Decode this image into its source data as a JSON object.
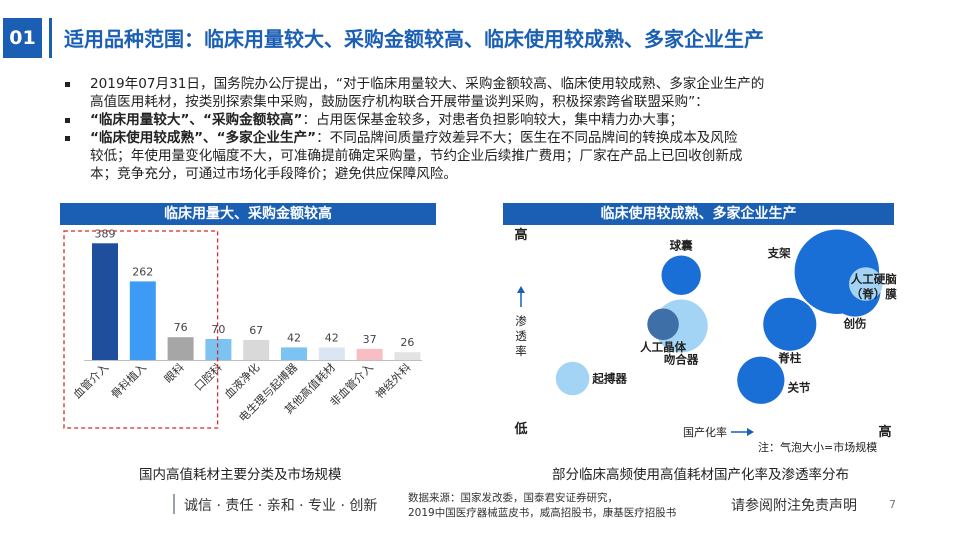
{
  "header": {
    "number": "01",
    "title": "适用品种范围：临床用量较大、采购金额较高、临床使用较成熟、多家企业生产"
  },
  "bullets": {
    "b1_line1": "2019年07月31日，国务院办公厅提出，“对于临床用量较大、采购金额较高、临床使用较成熟、多家企业生产的",
    "b1_line2": "高值医用耗材，按类别探索集中采购，鼓励医疗机构联合开展带量谈判采购，积极探索跨省联盟采购”：",
    "b2_bold": "“临床用量较大”、“采购金额较高”",
    "b2_text": "：占用医保基金较多，对患者负担影响较大，集中精力办大事；",
    "b3_bold": "“临床使用较成熟”、“多家企业生产”",
    "b3_text": "：不同品牌间质量疗效差异不大；医生在不同品牌间的转换成本及风险",
    "b3_line2": "较低；年使用量变化幅度不大，可准确提前确定采购量，节约企业后续推广费用；厂家在产品上已回收创新成",
    "b3_line3": "本；竞争充分，可通过市场化手段降价；避免供应保障风险。"
  },
  "left_panel": {
    "header": "临床用量大、采购金额较高",
    "caption": "国内高值耗材主要分类及市场规模"
  },
  "right_panel": {
    "header": "临床使用较成熟、多家企业生产",
    "caption": "部分临床高频使用高值耗材国产化率及渗透率分布",
    "y_high": "高",
    "y_low": "低",
    "y_label": "渗透率",
    "x_label": "国产化率",
    "x_high": "高",
    "note": "注：气泡大小=市场规模"
  },
  "footer": {
    "motto": "诚信 · 责任 · 亲和 · 专业 · 创新",
    "source_line1": "数据来源：国家发改委，国泰君安证券研究，",
    "source_line2": "2019中国医疗器械蓝皮书，威高招股书，康基医疗招股书",
    "disclaimer": "请参阅附注免责声明",
    "page": "7"
  },
  "chart_data": [
    {
      "type": "bar",
      "title": "临床用量大、采购金额较高",
      "categories": [
        "血管介入",
        "骨科植入",
        "眼科",
        "口腔科",
        "血液净化",
        "电生理与起搏器",
        "其他高值耗材",
        "非血管介入",
        "神经外科"
      ],
      "values": [
        389,
        262,
        76,
        70,
        67,
        42,
        42,
        37,
        26
      ],
      "colors": [
        "#1f4e9c",
        "#3d9bf5",
        "#a6a6a6",
        "#7dc3f2",
        "#d9d9d9",
        "#7dc3f2",
        "#dbe6f2",
        "#f7bfc3",
        "#e3e3e3"
      ],
      "highlighted": [
        "血管介入",
        "骨科植入",
        "眼科"
      ],
      "ylim": [
        0,
        400
      ],
      "highlight_color": "#d9262a"
    },
    {
      "type": "scatter",
      "title": "临床使用较成熟、多家企业生产",
      "xlabel": "国产化率",
      "ylabel": "渗透率",
      "points": [
        {
          "name": "球囊",
          "x": 0.39,
          "y": 0.81,
          "size": 0.15,
          "color": "#1a6fd6"
        },
        {
          "name": "支架",
          "x": 0.82,
          "y": 0.83,
          "size": 0.38,
          "color": "#1a6fd6"
        },
        {
          "name": "人工硬脑（脊）膜",
          "x": 0.9,
          "y": 0.76,
          "size": 0.12,
          "color": "#a3d4f5"
        },
        {
          "name": "创伤",
          "x": 0.87,
          "y": 0.72,
          "size": 0.21,
          "color": "#1a6fd6"
        },
        {
          "name": "人工晶体",
          "x": 0.34,
          "y": 0.53,
          "size": 0.11,
          "color": "#3f6fa7"
        },
        {
          "name": "吻合器",
          "x": 0.39,
          "y": 0.52,
          "size": 0.22,
          "color": "#a3d4f5"
        },
        {
          "name": "脊柱",
          "x": 0.69,
          "y": 0.53,
          "size": 0.22,
          "color": "#1a6fd6"
        },
        {
          "name": "起搏器",
          "x": 0.09,
          "y": 0.22,
          "size": 0.12,
          "color": "#a3d4f5"
        },
        {
          "name": "关节",
          "x": 0.61,
          "y": 0.21,
          "size": 0.19,
          "color": "#1a6fd6"
        }
      ]
    }
  ]
}
